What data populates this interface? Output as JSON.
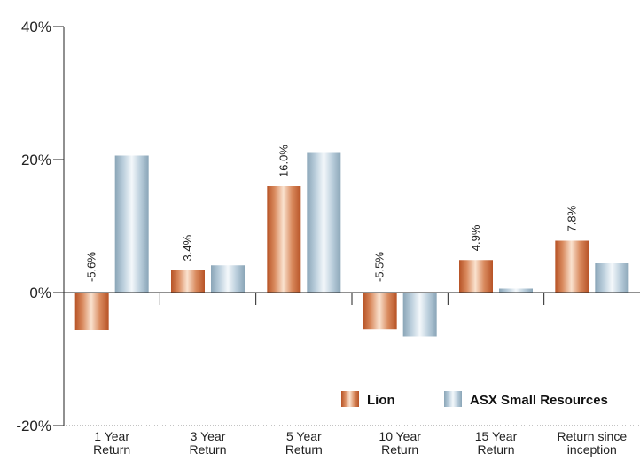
{
  "chart_data": {
    "type": "bar",
    "title": "",
    "xlabel": "",
    "ylabel": "",
    "ylim": [
      -20,
      40
    ],
    "yticks": [
      {
        "value": 40,
        "label": "40%"
      },
      {
        "value": 20,
        "label": "20%"
      },
      {
        "value": 0,
        "label": "0%"
      },
      {
        "value": -20,
        "label": "-20%"
      }
    ],
    "categories": [
      [
        "1 Year",
        "Return"
      ],
      [
        "3 Year",
        "Return"
      ],
      [
        "5 Year",
        "Return"
      ],
      [
        "10 Year",
        "Return"
      ],
      [
        "15 Year",
        "Return"
      ],
      [
        "Return since",
        "inception"
      ]
    ],
    "series": [
      {
        "name": "Lion",
        "values": [
          -5.6,
          3.4,
          16.0,
          -5.5,
          4.9,
          7.8
        ],
        "data_labels": [
          "-5.6%",
          "3.4%",
          "16.0%",
          "-5.5%",
          "4.9%",
          "7.8%"
        ],
        "color": "#c8693a"
      },
      {
        "name": "ASX Small Resources",
        "values": [
          20.6,
          4.1,
          21.0,
          -6.6,
          0.6,
          4.4
        ],
        "color": "#9fb8c8"
      }
    ],
    "legend": {
      "position": "bottom-right",
      "items": [
        "Lion",
        "ASX Small Resources"
      ]
    },
    "grid": false
  }
}
